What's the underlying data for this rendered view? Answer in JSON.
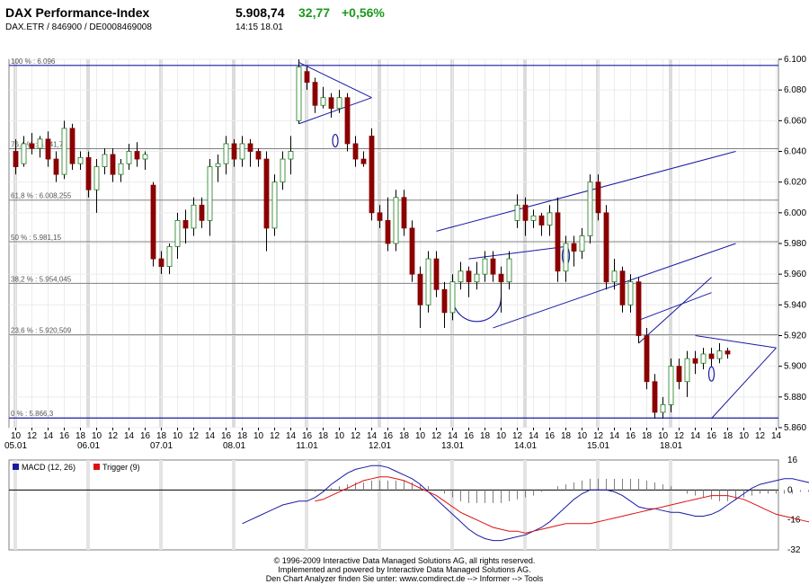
{
  "header": {
    "title": "DAX Performance-Index",
    "subtitle": "DAX.ETR  /  846900  /  DE0008469008",
    "price": "5.908,74",
    "change": "32,77",
    "change_pct": "+0,56%",
    "timestamp": "14:15   18.01"
  },
  "colors": {
    "up": "#ffffff",
    "down": "#8b0000",
    "wick": "#000000",
    "trend": "#1a1aa6",
    "macd": "#1a1aa6",
    "trigger": "#dd1111",
    "hist": "#808080",
    "fib": "#808080"
  },
  "chart_data": [
    {
      "type": "candlestick",
      "ylim": [
        5860,
        6100
      ],
      "y_ticks": [
        "6.100",
        "6.080",
        "6.060",
        "6.040",
        "6.020",
        "6.000",
        "5.980",
        "5.960",
        "5.940",
        "5.920",
        "5.900",
        "5.880",
        "5.860"
      ],
      "x_hour_labels": [
        "10",
        "12",
        "14",
        "16",
        "18",
        "10",
        "12",
        "14",
        "16",
        "18",
        "10",
        "12",
        "14",
        "16",
        "18",
        "10",
        "12",
        "14",
        "16",
        "18",
        "10",
        "12",
        "14",
        "16",
        "18",
        "10",
        "12",
        "14",
        "16",
        "18",
        "10",
        "12",
        "14",
        "16",
        "18",
        "10",
        "12",
        "14",
        "16",
        "18",
        "10",
        "12",
        "14",
        "16",
        "18",
        "10",
        "12",
        "14"
      ],
      "x_date_labels": [
        "05.01",
        "06.01",
        "07.01",
        "08.01",
        "11.01",
        "12.01",
        "13.01",
        "14.01",
        "15.01",
        "18.01"
      ],
      "fib_levels": [
        {
          "label": "100 % : 6.096",
          "value": 6096
        },
        {
          "label": "76,4 % : 6.041,79",
          "value": 6041.79
        },
        {
          "label": "61,8 % : 6.008,255",
          "value": 6008.255
        },
        {
          "label": "50 % : 5.981,15",
          "value": 5981.15
        },
        {
          "label": "38,2 % : 5.954,045",
          "value": 5954.045
        },
        {
          "label": "23,6 % : 5.920,509",
          "value": 5920.509
        },
        {
          "label": "0 % : 5.866,3",
          "value": 5866.3
        }
      ],
      "candles": [
        [
          6040,
          6048,
          6025,
          6030
        ],
        [
          6032,
          6050,
          6030,
          6045
        ],
        [
          6045,
          6052,
          6038,
          6042
        ],
        [
          6042,
          6050,
          6036,
          6048
        ],
        [
          6048,
          6053,
          6030,
          6035
        ],
        [
          6035,
          6040,
          6020,
          6025
        ],
        [
          6025,
          6060,
          6022,
          6055
        ],
        [
          6055,
          6058,
          6028,
          6032
        ],
        [
          6032,
          6040,
          6028,
          6036
        ],
        [
          6036,
          6040,
          6010,
          6015
        ],
        [
          6015,
          6035,
          6000,
          6030
        ],
        [
          6030,
          6042,
          6025,
          6038
        ],
        [
          6038,
          6042,
          6020,
          6025
        ],
        [
          6025,
          6035,
          6020,
          6032
        ],
        [
          6032,
          6045,
          6028,
          6040
        ],
        [
          6040,
          6046,
          6030,
          6035
        ],
        [
          6035,
          6040,
          6028,
          6038
        ],
        [
          6018,
          6020,
          5965,
          5970
        ],
        [
          5970,
          5975,
          5960,
          5965
        ],
        [
          5965,
          5980,
          5960,
          5978
        ],
        [
          5978,
          6000,
          5970,
          5995
        ],
        [
          5995,
          6002,
          5980,
          5990
        ],
        [
          5990,
          6010,
          5985,
          6005
        ],
        [
          6005,
          6010,
          5990,
          5995
        ],
        [
          5995,
          6035,
          5985,
          6030
        ],
        [
          6030,
          6038,
          6020,
          6032
        ],
        [
          6032,
          6050,
          6025,
          6045
        ],
        [
          6045,
          6048,
          6030,
          6035
        ],
        [
          6035,
          6050,
          6030,
          6045
        ],
        [
          6045,
          6048,
          6030,
          6040
        ],
        [
          6040,
          6042,
          6030,
          6035
        ],
        [
          6035,
          6040,
          5975,
          5990
        ],
        [
          5990,
          6025,
          5985,
          6020
        ],
        [
          6020,
          6040,
          6015,
          6035
        ],
        [
          6035,
          6050,
          6025,
          6040
        ],
        [
          6060,
          6100,
          6058,
          6095
        ],
        [
          6092,
          6095,
          6080,
          6085
        ],
        [
          6085,
          6088,
          6065,
          6070
        ],
        [
          6070,
          6082,
          6068,
          6075
        ],
        [
          6075,
          6078,
          6062,
          6068
        ],
        [
          6068,
          6080,
          6065,
          6075
        ],
        [
          6075,
          6078,
          6040,
          6045
        ],
        [
          6045,
          6050,
          6030,
          6035
        ],
        [
          6035,
          6040,
          6030,
          6032
        ],
        [
          6050,
          6055,
          5995,
          6000
        ],
        [
          6000,
          6005,
          5990,
          5995
        ],
        [
          5995,
          6010,
          5975,
          5980
        ],
        [
          5980,
          6015,
          5975,
          6010
        ],
        [
          6010,
          6015,
          5985,
          5990
        ],
        [
          5990,
          5995,
          5955,
          5960
        ],
        [
          5960,
          5965,
          5925,
          5940
        ],
        [
          5940,
          5975,
          5935,
          5970
        ],
        [
          5970,
          5975,
          5945,
          5950
        ],
        [
          5950,
          5955,
          5925,
          5935
        ],
        [
          5935,
          5960,
          5930,
          5955
        ],
        [
          5955,
          5968,
          5950,
          5962
        ],
        [
          5962,
          5965,
          5945,
          5955
        ],
        [
          5955,
          5968,
          5950,
          5960
        ],
        [
          5960,
          5975,
          5955,
          5970
        ],
        [
          5970,
          5975,
          5955,
          5960
        ],
        [
          5960,
          5965,
          5935,
          5955
        ],
        [
          5955,
          5975,
          5950,
          5970
        ],
        [
          5995,
          6012,
          5990,
          6005
        ],
        [
          6005,
          6010,
          5985,
          5995
        ],
        [
          5995,
          6002,
          5990,
          5998
        ],
        [
          5998,
          6000,
          5985,
          5992
        ],
        [
          5992,
          6005,
          5985,
          6000
        ],
        [
          6000,
          6010,
          5955,
          5962
        ],
        [
          5962,
          5985,
          5955,
          5980
        ],
        [
          5980,
          5985,
          5965,
          5975
        ],
        [
          5975,
          5990,
          5970,
          5985
        ],
        [
          5985,
          6025,
          5980,
          6020
        ],
        [
          6020,
          6025,
          5995,
          6000
        ],
        [
          6000,
          6005,
          5950,
          5955
        ],
        [
          5955,
          5970,
          5950,
          5962
        ],
        [
          5962,
          5965,
          5935,
          5940
        ],
        [
          5940,
          5960,
          5935,
          5955
        ],
        [
          5955,
          5958,
          5915,
          5920
        ],
        [
          5920,
          5925,
          5885,
          5890
        ],
        [
          5890,
          5895,
          5866,
          5870
        ],
        [
          5870,
          5880,
          5866,
          5875
        ],
        [
          5875,
          5905,
          5870,
          5900
        ],
        [
          5900,
          5905,
          5885,
          5890
        ],
        [
          5890,
          5910,
          5880,
          5905
        ],
        [
          5905,
          5910,
          5895,
          5902
        ],
        [
          5902,
          5912,
          5898,
          5908
        ],
        [
          5908,
          5912,
          5900,
          5905
        ],
        [
          5905,
          5915,
          5902,
          5910
        ],
        [
          5910,
          5912,
          5905,
          5908
        ]
      ]
    },
    {
      "type": "line",
      "legend": [
        "MACD (12, 26)",
        "Trigger (9)"
      ],
      "ylim": [
        -32,
        16
      ],
      "y_ticks": [
        "16",
        "0",
        "-16",
        "-32"
      ],
      "series": [
        {
          "name": "MACD (12, 26)",
          "x_start": 28,
          "values": [
            -18,
            -16,
            -14,
            -12,
            -10,
            -8,
            -7,
            -6,
            -6,
            -4,
            -1,
            3,
            6,
            9,
            11,
            12,
            13,
            13,
            12,
            10,
            8,
            6,
            3,
            -1,
            -5,
            -9,
            -13,
            -17,
            -21,
            -24,
            -26,
            -27,
            -27,
            -26,
            -25,
            -24,
            -22,
            -20,
            -17,
            -13,
            -9,
            -5,
            -2,
            0,
            0,
            0,
            -1,
            -3,
            -6,
            -9,
            -10,
            -10,
            -11,
            -12,
            -12,
            -13,
            -14,
            -14,
            -13,
            -11,
            -8,
            -5,
            -2,
            1,
            3,
            4,
            5,
            6,
            6,
            5,
            4,
            3,
            2,
            1,
            0,
            -1,
            -3,
            -4,
            -5,
            -7,
            -10,
            -13,
            -15,
            -17,
            -18,
            -19,
            -20,
            -21,
            -22,
            -23,
            -24,
            -24,
            -23,
            -22,
            -21
          ]
        },
        {
          "name": "Trigger (9)",
          "x_start": 37,
          "values": [
            -6,
            -5,
            -3,
            -1,
            1,
            3,
            5,
            6,
            7,
            7,
            6,
            5,
            3,
            1,
            -1,
            -3,
            -6,
            -9,
            -12,
            -14,
            -16,
            -18,
            -20,
            -21,
            -22,
            -22,
            -23,
            -22,
            -21,
            -20,
            -19,
            -18,
            -18,
            -18,
            -18,
            -17,
            -16,
            -15,
            -14,
            -13,
            -12,
            -11,
            -10,
            -9,
            -8,
            -7,
            -6,
            -5,
            -4,
            -3,
            -3,
            -3,
            -4,
            -5,
            -7,
            -9,
            -11,
            -13,
            -14,
            -15,
            -16,
            -17,
            -17,
            -17
          ]
        }
      ],
      "histogram": [
        -1,
        -1,
        1,
        2,
        3,
        4,
        4,
        5,
        5,
        5,
        5,
        5,
        4,
        3,
        2,
        0,
        -2,
        -4,
        -6,
        -7,
        -7,
        -7,
        -7,
        -7,
        -6,
        -5,
        -4,
        -3,
        -1,
        0,
        2,
        3,
        4,
        5,
        6,
        6,
        6,
        6,
        6,
        6,
        6,
        5,
        4,
        3,
        2,
        0,
        -2,
        -3,
        -4,
        -5,
        -6,
        -6,
        -5,
        -4,
        -3,
        -2,
        -2,
        -2,
        -2,
        -2,
        -1,
        -1,
        0,
        0
      ]
    }
  ],
  "footer": {
    "line1": "© 1996-2009 Interactive Data Managed Solutions AG, all rights reserved.",
    "line2": "Implemented and powered by  Interactive Data Managed Solutions AG.",
    "line3": "Den Chart Analyzer finden Sie unter: www.comdirect.de --> Informer --> Tools"
  }
}
